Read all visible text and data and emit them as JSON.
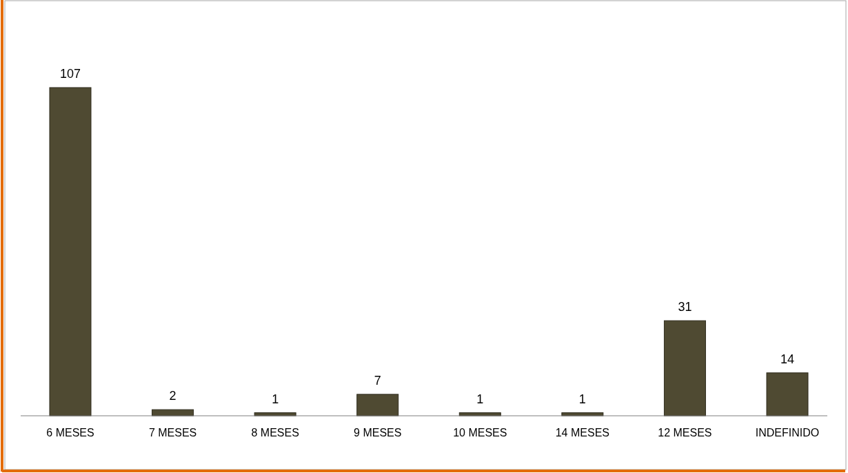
{
  "chart_data": {
    "type": "bar",
    "categories": [
      "6 MESES",
      "7 MESES",
      "8 MESES",
      "9 MESES",
      "10 MESES",
      "14 MESES",
      "12 MESES",
      "INDEFINIDO"
    ],
    "values": [
      107,
      2,
      1,
      7,
      1,
      1,
      31,
      14
    ],
    "color": "#4f4a32",
    "data_labels": true
  }
}
